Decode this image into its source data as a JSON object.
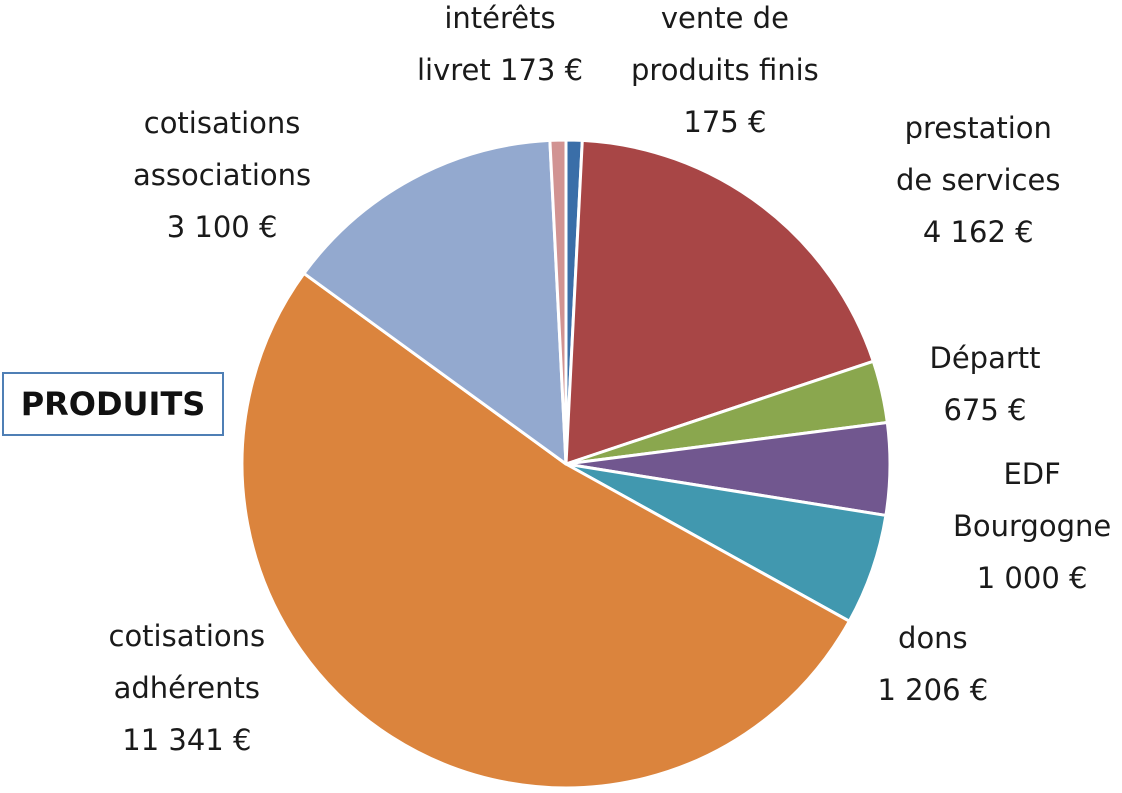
{
  "chart_data": {
    "type": "pie",
    "title": "PRODUITS",
    "slices": [
      {
        "label": [
          "vente de",
          "produits finis",
          "175 €"
        ],
        "value": 175,
        "color": "#3a6ea8"
      },
      {
        "label": [
          "prestation",
          "de services",
          "4 162 €"
        ],
        "value": 4162,
        "color": "#a84646"
      },
      {
        "label": [
          "Départt",
          "675 €"
        ],
        "value": 675,
        "color": "#8aa74e"
      },
      {
        "label": [
          "EDF",
          "Bourgogne",
          "1 000 €"
        ],
        "value": 1000,
        "color": "#71578f"
      },
      {
        "label": [
          "dons",
          "1 206 €"
        ],
        "value": 1206,
        "color": "#4198af"
      },
      {
        "label": [
          "cotisations",
          "adhérents",
          "11 341 €"
        ],
        "value": 11341,
        "color": "#db843d"
      },
      {
        "label": [
          "cotisations",
          "associations",
          "3 100 €"
        ],
        "value": 3100,
        "color": "#93a9cf"
      },
      {
        "label": [
          "intérêts",
          "livret 173 €"
        ],
        "value": 173,
        "color": "#d19392"
      }
    ]
  }
}
